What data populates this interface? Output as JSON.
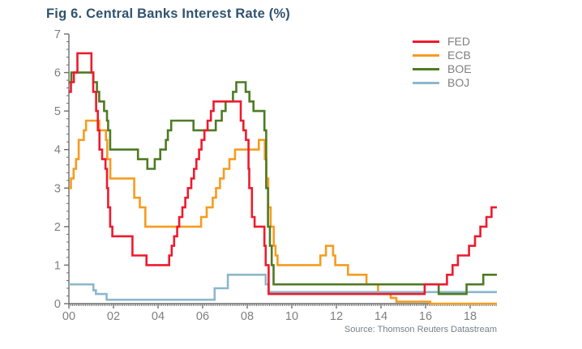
{
  "title": "Fig 6. Central Banks Interest Rate (%)",
  "source": {
    "text": "Source: Thomson Reuters Datastream"
  },
  "colors": {
    "title": "#30536F",
    "axis": "#6E6E6E",
    "tick_label": "#7f7f7f",
    "legend_label": "#7f7f7f",
    "source_text": "#75808C",
    "fed": "#ED1B2D",
    "ecb": "#F59C20",
    "boe": "#4E7B23",
    "boj": "#8CB7CC"
  },
  "chart_data": {
    "type": "line",
    "title": "Fig 6. Central Banks Interest Rate (%)",
    "xlabel": "",
    "ylabel": "",
    "grid": false,
    "step_interpolation": true,
    "x_axis": {
      "range": [
        2000,
        2019.2
      ],
      "major_tick_values": [
        2000,
        2002,
        2004,
        2006,
        2008,
        2010,
        2012,
        2014,
        2016,
        2018
      ],
      "tick_labels": [
        "00",
        "02",
        "04",
        "06",
        "08",
        "10",
        "12",
        "14",
        "16",
        "18"
      ],
      "minor_interval": 0.08333
    },
    "y_axis": {
      "range": [
        0,
        7
      ],
      "major_interval": 1,
      "minor_interval": 0.2,
      "tick_labels": [
        "0",
        "1",
        "2",
        "3",
        "4",
        "5",
        "6",
        "7"
      ]
    },
    "legend": {
      "position": "top-right",
      "entries": [
        {
          "name": "FED",
          "color": "#ED1B2D"
        },
        {
          "name": "ECB",
          "color": "#F59C20"
        },
        {
          "name": "BOE",
          "color": "#4E7B23"
        },
        {
          "name": "BOJ",
          "color": "#8CB7CC"
        }
      ]
    },
    "series": [
      {
        "name": "ECB",
        "color": "#F59C20",
        "points": [
          [
            2000,
            3.0
          ],
          [
            2000.09,
            3.25
          ],
          [
            2000.21,
            3.5
          ],
          [
            2000.32,
            3.75
          ],
          [
            2000.44,
            4.25
          ],
          [
            2000.67,
            4.5
          ],
          [
            2000.77,
            4.75
          ],
          [
            2001.36,
            4.5
          ],
          [
            2001.66,
            4.25
          ],
          [
            2001.72,
            3.75
          ],
          [
            2001.86,
            3.25
          ],
          [
            2002.93,
            2.75
          ],
          [
            2003.18,
            2.5
          ],
          [
            2003.43,
            2.0
          ],
          [
            2005.93,
            2.25
          ],
          [
            2006.18,
            2.5
          ],
          [
            2006.45,
            2.75
          ],
          [
            2006.6,
            3.0
          ],
          [
            2006.78,
            3.25
          ],
          [
            2006.95,
            3.5
          ],
          [
            2007.2,
            3.75
          ],
          [
            2007.45,
            4.0
          ],
          [
            2008.52,
            4.25
          ],
          [
            2008.79,
            3.75
          ],
          [
            2008.86,
            3.25
          ],
          [
            2008.94,
            2.5
          ],
          [
            2009.05,
            2.0
          ],
          [
            2009.19,
            1.5
          ],
          [
            2009.27,
            1.25
          ],
          [
            2009.36,
            1.0
          ],
          [
            2011.28,
            1.25
          ],
          [
            2011.53,
            1.5
          ],
          [
            2011.85,
            1.25
          ],
          [
            2011.95,
            1.0
          ],
          [
            2012.52,
            0.75
          ],
          [
            2013.35,
            0.5
          ],
          [
            2013.87,
            0.25
          ],
          [
            2014.44,
            0.15
          ],
          [
            2014.69,
            0.05
          ],
          [
            2016.21,
            0.0
          ]
        ]
      },
      {
        "name": "BOJ",
        "color": "#8CB7CC",
        "points": [
          [
            2000,
            0.5
          ],
          [
            2001.1,
            0.35
          ],
          [
            2001.21,
            0.25
          ],
          [
            2001.69,
            0.1
          ],
          [
            2006.54,
            0.4
          ],
          [
            2007.13,
            0.75
          ],
          [
            2008.83,
            0.5
          ],
          [
            2008.96,
            0.3
          ]
        ]
      },
      {
        "name": "BOE",
        "color": "#4E7B23",
        "points": [
          [
            2000,
            5.75
          ],
          [
            2000.11,
            6.0
          ],
          [
            2001.1,
            5.75
          ],
          [
            2001.26,
            5.5
          ],
          [
            2001.36,
            5.25
          ],
          [
            2001.58,
            5.0
          ],
          [
            2001.71,
            4.75
          ],
          [
            2001.76,
            4.5
          ],
          [
            2001.85,
            4.0
          ],
          [
            2003.1,
            3.75
          ],
          [
            2003.52,
            3.5
          ],
          [
            2003.85,
            3.75
          ],
          [
            2004.1,
            4.0
          ],
          [
            2004.35,
            4.25
          ],
          [
            2004.44,
            4.5
          ],
          [
            2004.59,
            4.75
          ],
          [
            2005.59,
            4.5
          ],
          [
            2006.59,
            4.75
          ],
          [
            2006.86,
            5.0
          ],
          [
            2007.03,
            5.25
          ],
          [
            2007.36,
            5.5
          ],
          [
            2007.51,
            5.75
          ],
          [
            2007.93,
            5.5
          ],
          [
            2008.1,
            5.25
          ],
          [
            2008.28,
            5.0
          ],
          [
            2008.77,
            4.5
          ],
          [
            2008.85,
            3.0
          ],
          [
            2008.93,
            2.0
          ],
          [
            2009.02,
            1.5
          ],
          [
            2009.1,
            1.0
          ],
          [
            2009.18,
            0.5
          ],
          [
            2016.59,
            0.25
          ],
          [
            2017.84,
            0.5
          ],
          [
            2018.59,
            0.75
          ]
        ]
      },
      {
        "name": "FED",
        "color": "#ED1B2D",
        "points": [
          [
            2000,
            5.5
          ],
          [
            2000.09,
            5.75
          ],
          [
            2000.22,
            6.0
          ],
          [
            2000.38,
            6.5
          ],
          [
            2001.01,
            6.0
          ],
          [
            2001.09,
            5.5
          ],
          [
            2001.22,
            5.0
          ],
          [
            2001.3,
            4.5
          ],
          [
            2001.37,
            4.0
          ],
          [
            2001.49,
            3.75
          ],
          [
            2001.64,
            3.5
          ],
          [
            2001.71,
            3.0
          ],
          [
            2001.76,
            2.5
          ],
          [
            2001.85,
            2.0
          ],
          [
            2001.95,
            1.75
          ],
          [
            2002.85,
            1.25
          ],
          [
            2003.48,
            1.0
          ],
          [
            2004.5,
            1.25
          ],
          [
            2004.61,
            1.5
          ],
          [
            2004.72,
            1.75
          ],
          [
            2004.86,
            2.0
          ],
          [
            2004.95,
            2.25
          ],
          [
            2005.09,
            2.5
          ],
          [
            2005.22,
            2.75
          ],
          [
            2005.34,
            3.0
          ],
          [
            2005.49,
            3.25
          ],
          [
            2005.61,
            3.5
          ],
          [
            2005.72,
            3.75
          ],
          [
            2005.84,
            4.0
          ],
          [
            2005.95,
            4.25
          ],
          [
            2006.08,
            4.5
          ],
          [
            2006.22,
            4.75
          ],
          [
            2006.37,
            5.0
          ],
          [
            2006.49,
            5.25
          ],
          [
            2007.71,
            4.75
          ],
          [
            2007.83,
            4.5
          ],
          [
            2007.94,
            4.25
          ],
          [
            2008.06,
            3.5
          ],
          [
            2008.09,
            3.0
          ],
          [
            2008.21,
            2.25
          ],
          [
            2008.33,
            2.0
          ],
          [
            2008.77,
            1.5
          ],
          [
            2008.83,
            1.0
          ],
          [
            2008.96,
            0.25
          ],
          [
            2015.96,
            0.5
          ],
          [
            2016.96,
            0.75
          ],
          [
            2017.21,
            1.0
          ],
          [
            2017.45,
            1.25
          ],
          [
            2017.95,
            1.5
          ],
          [
            2018.22,
            1.75
          ],
          [
            2018.46,
            2.0
          ],
          [
            2018.73,
            2.25
          ],
          [
            2018.96,
            2.5
          ]
        ]
      }
    ]
  }
}
